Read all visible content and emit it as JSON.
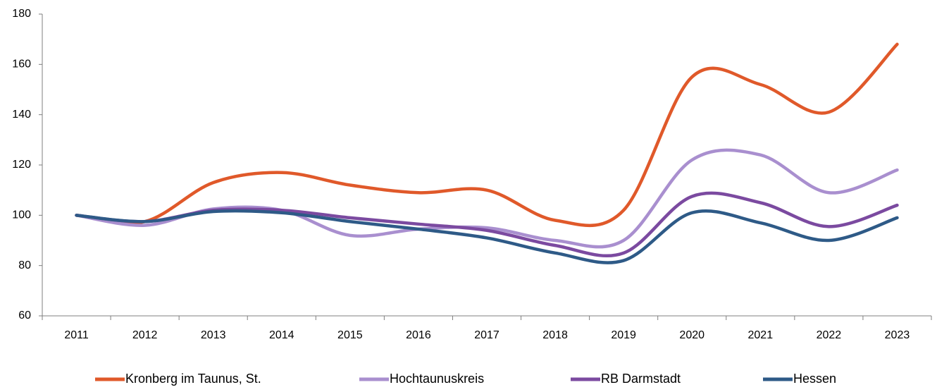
{
  "chart_data": {
    "type": "line",
    "categories": [
      "2011",
      "2012",
      "2013",
      "2014",
      "2015",
      "2016",
      "2017",
      "2018",
      "2019",
      "2020",
      "2021",
      "2022",
      "2023"
    ],
    "series": [
      {
        "name": "Kronberg im Taunus, St.",
        "color": "#e0592a",
        "values": [
          100,
          97.5,
          113,
          117,
          112,
          109,
          110,
          98,
          102,
          155,
          152,
          141,
          168
        ]
      },
      {
        "name": "Hochtaunuskreis",
        "color": "#a98fcf",
        "values": [
          100,
          96,
          102.5,
          102,
          92,
          94.5,
          95,
          90,
          90,
          122,
          124,
          109,
          118
        ]
      },
      {
        "name": "RB Darmstadt",
        "color": "#7b4aa0",
        "values": [
          100,
          97.5,
          102,
          102,
          99,
          96.5,
          94,
          88,
          85,
          107.5,
          105,
          95.5,
          104
        ]
      },
      {
        "name": "Hessen",
        "color": "#2e5a87",
        "values": [
          100,
          97.5,
          101.5,
          101,
          97.5,
          94.5,
          91,
          85,
          82,
          101,
          97,
          90,
          99
        ]
      }
    ],
    "ylim": [
      60,
      180
    ],
    "yticks": [
      60,
      80,
      100,
      120,
      140,
      160,
      180
    ],
    "grid": false,
    "legend": "bottom",
    "smooth": true
  }
}
